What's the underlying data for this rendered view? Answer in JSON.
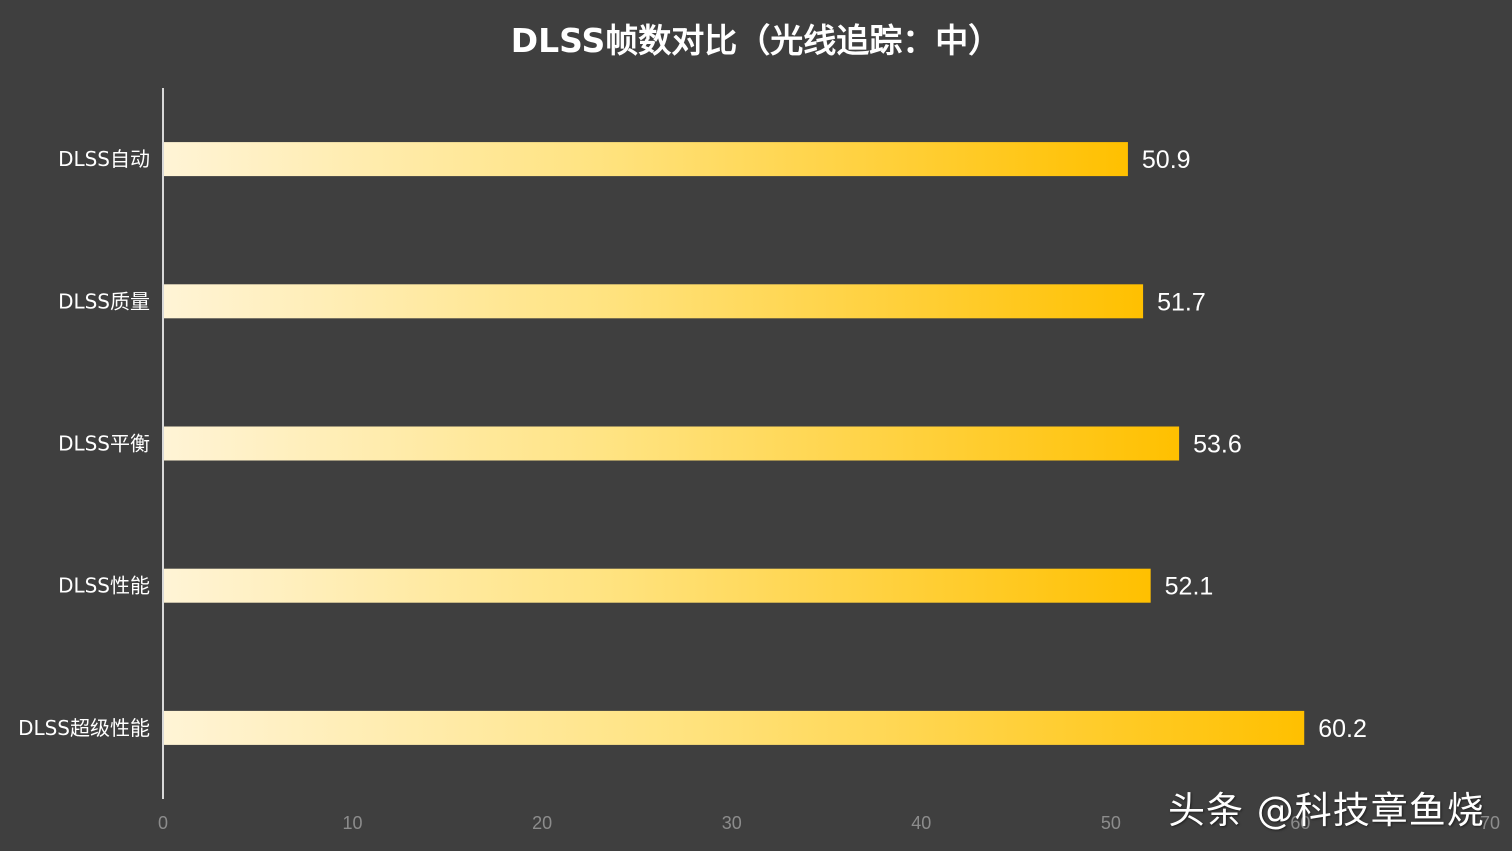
{
  "chart_data": {
    "type": "bar",
    "orientation": "horizontal",
    "title": "DLSS帧数对比（光线追踪：中）",
    "categories": [
      "DLSS自动",
      "DLSS质量",
      "DLSS平衡",
      "DLSS性能",
      "DLSS超级性能"
    ],
    "values": [
      50.9,
      51.7,
      53.6,
      52.1,
      60.2
    ],
    "value_labels": [
      "50.9",
      "51.7",
      "53.6",
      "52.1",
      "60.2"
    ],
    "xlim": [
      0,
      70
    ],
    "x_ticks": [
      "0",
      "10",
      "20",
      "30",
      "40",
      "50",
      "60",
      "70"
    ],
    "xlabel": "",
    "ylabel": "",
    "grid": false,
    "legend": "none",
    "colors": {
      "background": "#3f3f3f",
      "bar_start": "#fff4d6",
      "bar_end": "#ffc000",
      "axis": "#d9d9d9",
      "tick_label": "#8c8c8c",
      "text": "#ffffff"
    }
  },
  "watermark": "头条 @科技章鱼烧"
}
